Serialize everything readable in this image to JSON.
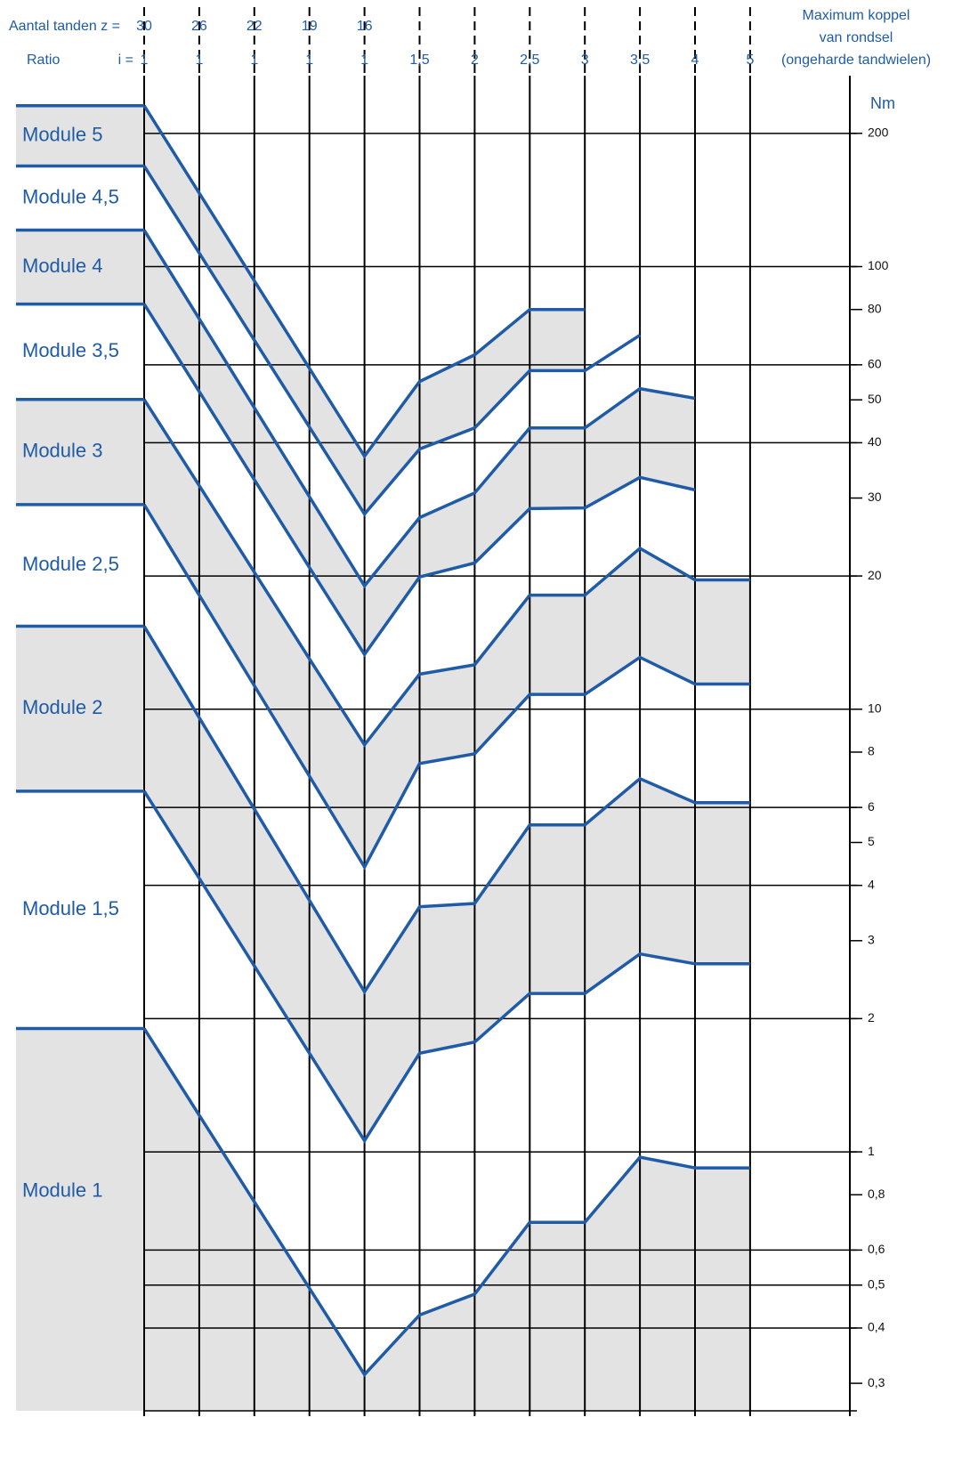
{
  "chart_data": {
    "type": "line",
    "teeth_label": "Aantal tanden z =",
    "teeth": [
      30,
      26,
      22,
      19,
      16
    ],
    "ratio_label": "Ratio",
    "ratio_prefix": "i =",
    "categories": [
      "1",
      "1",
      "1",
      "1",
      "1",
      "1,5",
      "2",
      "2,5",
      "3",
      "3,5",
      "4",
      "5"
    ],
    "y_title": [
      "Maximum koppel",
      "van rondsel",
      "(ongeharde tandwielen)"
    ],
    "y_unit": "Nm",
    "log_y": true,
    "ylim": [
      0.26,
      270
    ],
    "yticks": [
      200,
      100,
      80,
      60,
      50,
      40,
      30,
      20,
      10,
      8,
      6,
      5,
      4,
      3,
      2,
      1,
      {
        "value": 0.8,
        "label": "0,8"
      },
      {
        "value": 0.6,
        "label": "0,6"
      },
      {
        "value": 0.5,
        "label": "0,5"
      },
      {
        "value": 0.4,
        "label": "0,4"
      },
      {
        "value": 0.3,
        "label": "0,3"
      }
    ],
    "grid_values": [
      200,
      100,
      60,
      40,
      20,
      10,
      6,
      4,
      2,
      1,
      0.6,
      0.5,
      0.4
    ],
    "fill_color": "#e3e3e3",
    "series": [
      {
        "name": "Module 5",
        "color": "#1f5ba6",
        "values": [
          231,
          146.6,
          92.9,
          58.9,
          37.3,
          55.0,
          63.2,
          80.0,
          80.0,
          null,
          null,
          null
        ]
      },
      {
        "name": "Module 4,5",
        "color": "#1f5ba6",
        "values": [
          168.8,
          107.3,
          68.2,
          43.4,
          27.6,
          38.7,
          43.2,
          58.2,
          58.2,
          70.0,
          null,
          null
        ]
      },
      {
        "name": "Module 4",
        "color": "#1f5ba6",
        "values": [
          120.9,
          76.2,
          48.0,
          30.2,
          19.0,
          27.1,
          30.8,
          43.2,
          43.2,
          53.0,
          50.4,
          null
        ]
      },
      {
        "name": "Module 3,5",
        "color": "#1f5ba6",
        "values": [
          82.3,
          52.2,
          33.0,
          20.9,
          13.3,
          19.9,
          21.4,
          28.4,
          28.5,
          33.4,
          31.3,
          null
        ]
      },
      {
        "name": "Module 3",
        "color": "#1f5ba6",
        "values": [
          50.1,
          32.0,
          20.4,
          13.0,
          8.31,
          12.0,
          12.6,
          18.1,
          18.1,
          23.1,
          19.6,
          19.6
        ]
      },
      {
        "name": "Module 2,5",
        "color": "#1f5ba6",
        "values": [
          29.0,
          18.1,
          11.3,
          7.06,
          4.4,
          7.54,
          7.93,
          10.8,
          10.8,
          13.1,
          11.4,
          11.4
        ]
      },
      {
        "name": "Module 2",
        "color": "#1f5ba6",
        "values": [
          15.4,
          9.57,
          5.95,
          3.7,
          2.3,
          3.58,
          3.64,
          5.48,
          5.48,
          6.97,
          6.15,
          6.15
        ]
      },
      {
        "name": "Module 1,5",
        "color": "#1f5ba6",
        "values": [
          6.53,
          4.15,
          2.63,
          1.67,
          1.06,
          1.67,
          1.77,
          2.28,
          2.28,
          2.8,
          2.66,
          2.66
        ]
      },
      {
        "name": "Module 1",
        "color": "#1f5ba6",
        "values": [
          1.9,
          1.21,
          0.771,
          0.492,
          0.314,
          0.428,
          0.477,
          0.693,
          0.693,
          0.973,
          0.92,
          0.92
        ]
      }
    ]
  }
}
